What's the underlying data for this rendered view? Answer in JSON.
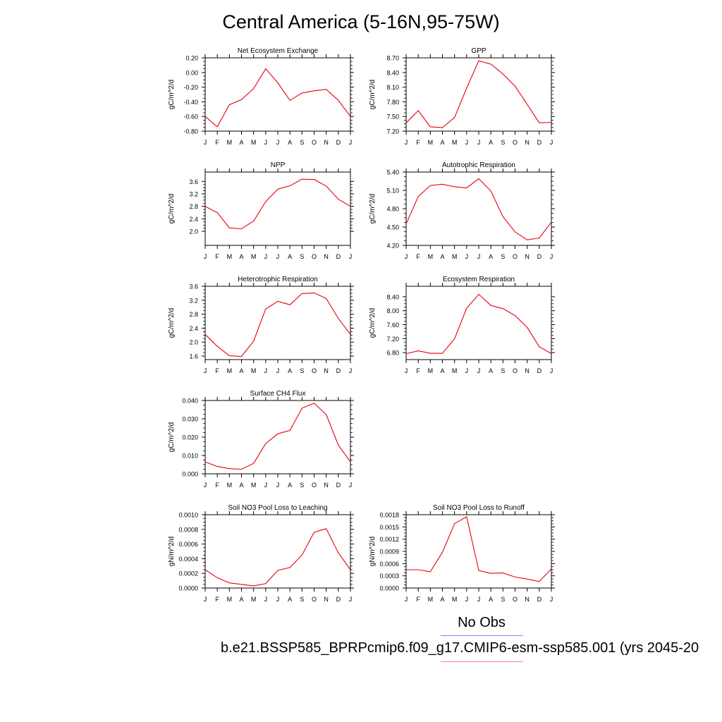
{
  "title": "Central America (5-16N,95-75W)",
  "line_color": "#e8000b",
  "legend": {
    "obs_label": "No Obs",
    "obs_color": "#8080ff",
    "run_label": "b.e21.BSSP585_BPRPcmip6.f09_g17.CMIP6-esm-ssp585.001 (yrs 2045-20",
    "run_color": "#ff8080"
  },
  "chart_data": [
    {
      "type": "line",
      "title": "Net Ecosystem Exchange",
      "ylabel": "gC/m^2/d",
      "x": [
        "J",
        "F",
        "M",
        "A",
        "M",
        "J",
        "J",
        "A",
        "S",
        "O",
        "N",
        "D",
        "J"
      ],
      "ylim": [
        -0.8,
        0.2
      ],
      "yticks": [
        "0.20",
        "0.00",
        "-0.20",
        "-0.40",
        "-0.60",
        "-0.80"
      ],
      "values": [
        -0.6,
        -0.74,
        -0.44,
        -0.37,
        -0.22,
        0.05,
        -0.14,
        -0.38,
        -0.28,
        -0.25,
        -0.23,
        -0.38,
        -0.6
      ]
    },
    {
      "type": "line",
      "title": "GPP",
      "ylabel": "gC/m^2/d",
      "x": [
        "J",
        "F",
        "M",
        "A",
        "M",
        "J",
        "J",
        "A",
        "S",
        "O",
        "N",
        "D",
        "J"
      ],
      "ylim": [
        7.2,
        8.7
      ],
      "yticks": [
        "8.70",
        "8.40",
        "8.10",
        "7.80",
        "7.50",
        "7.20"
      ],
      "values": [
        7.37,
        7.62,
        7.29,
        7.27,
        7.48,
        8.08,
        8.64,
        8.57,
        8.37,
        8.12,
        7.75,
        7.37,
        7.38
      ]
    },
    {
      "type": "line",
      "title": "NPP",
      "ylabel": "gC/m^2/d",
      "x": [
        "J",
        "F",
        "M",
        "A",
        "M",
        "J",
        "J",
        "A",
        "S",
        "O",
        "N",
        "D",
        "J"
      ],
      "ylim": [
        1.55,
        3.9
      ],
      "yticks": [
        "3.6",
        "3.2",
        "2.8",
        "2.4",
        "2.0"
      ],
      "values": [
        2.8,
        2.6,
        2.11,
        2.08,
        2.33,
        2.95,
        3.35,
        3.46,
        3.67,
        3.66,
        3.45,
        3.03,
        2.8
      ]
    },
    {
      "type": "line",
      "title": "Autotrophic Respiration",
      "ylabel": "gC/m^2/d",
      "x": [
        "J",
        "F",
        "M",
        "A",
        "M",
        "J",
        "J",
        "A",
        "S",
        "O",
        "N",
        "D",
        "J"
      ],
      "ylim": [
        4.2,
        5.4
      ],
      "yticks": [
        "5.40",
        "5.10",
        "4.80",
        "4.50",
        "4.20"
      ],
      "values": [
        4.55,
        5.0,
        5.18,
        5.2,
        5.16,
        5.14,
        5.29,
        5.09,
        4.67,
        4.42,
        4.29,
        4.32,
        4.58
      ]
    },
    {
      "type": "line",
      "title": "Heterotrophic Respiration",
      "ylabel": "gC/m^2/d",
      "x": [
        "J",
        "F",
        "M",
        "A",
        "M",
        "J",
        "J",
        "A",
        "S",
        "O",
        "N",
        "D",
        "J"
      ],
      "ylim": [
        1.5,
        3.6
      ],
      "yticks": [
        "3.6",
        "3.2",
        "2.8",
        "2.4",
        "2.0",
        "1.6"
      ],
      "values": [
        2.22,
        1.88,
        1.61,
        1.59,
        2.03,
        2.95,
        3.17,
        3.07,
        3.39,
        3.41,
        3.25,
        2.68,
        2.22
      ]
    },
    {
      "type": "line",
      "title": "Ecosystem Respiration",
      "ylabel": "gC/m^2/d",
      "x": [
        "J",
        "F",
        "M",
        "A",
        "M",
        "J",
        "J",
        "A",
        "S",
        "O",
        "N",
        "D",
        "J"
      ],
      "ylim": [
        6.6,
        8.7
      ],
      "yticks": [
        "8.40",
        "8.00",
        "7.60",
        "7.20",
        "6.80"
      ],
      "values": [
        6.77,
        6.85,
        6.78,
        6.78,
        7.2,
        8.07,
        8.47,
        8.15,
        8.06,
        7.86,
        7.52,
        6.97,
        6.77
      ]
    },
    {
      "type": "line",
      "title": "Surface CH4 Flux",
      "ylabel": "gC/m^2/d",
      "x": [
        "J",
        "F",
        "M",
        "A",
        "M",
        "J",
        "J",
        "A",
        "S",
        "O",
        "N",
        "D",
        "J"
      ],
      "ylim": [
        0.0,
        0.04
      ],
      "yticks": [
        "0.040",
        "0.030",
        "0.020",
        "0.010",
        "0.000"
      ],
      "values": [
        0.0065,
        0.004,
        0.0028,
        0.0025,
        0.0057,
        0.0165,
        0.0218,
        0.0237,
        0.0358,
        0.0385,
        0.0323,
        0.0157,
        0.0065
      ]
    },
    {
      "type": "line",
      "title": "Soil NO3 Pool Loss to Leaching",
      "ylabel": "gN/m^2/d",
      "x": [
        "J",
        "F",
        "M",
        "A",
        "M",
        "J",
        "J",
        "A",
        "S",
        "O",
        "N",
        "D",
        "J"
      ],
      "ylim": [
        0.0,
        0.001
      ],
      "yticks": [
        "0.0010",
        "0.0008",
        "0.0006",
        "0.0004",
        "0.0002",
        "0.0000"
      ],
      "values": [
        0.00025,
        0.00014,
        7e-05,
        5e-05,
        3e-05,
        6e-05,
        0.00024,
        0.00028,
        0.00045,
        0.00076,
        0.00081,
        0.00048,
        0.00025
      ]
    },
    {
      "type": "line",
      "title": "Soil NO3 Pool Loss to Runoff",
      "ylabel": "gN/m^2/d",
      "x": [
        "J",
        "F",
        "M",
        "A",
        "M",
        "J",
        "J",
        "A",
        "S",
        "O",
        "N",
        "D",
        "J"
      ],
      "ylim": [
        0.0,
        0.0018
      ],
      "yticks": [
        "0.0018",
        "0.0015",
        "0.0012",
        "0.0009",
        "0.0006",
        "0.0003",
        "0.0000"
      ],
      "values": [
        0.00045,
        0.00045,
        0.0004,
        0.00088,
        0.00158,
        0.00175,
        0.00043,
        0.00036,
        0.00037,
        0.00027,
        0.00022,
        0.00016,
        0.00047
      ]
    }
  ]
}
